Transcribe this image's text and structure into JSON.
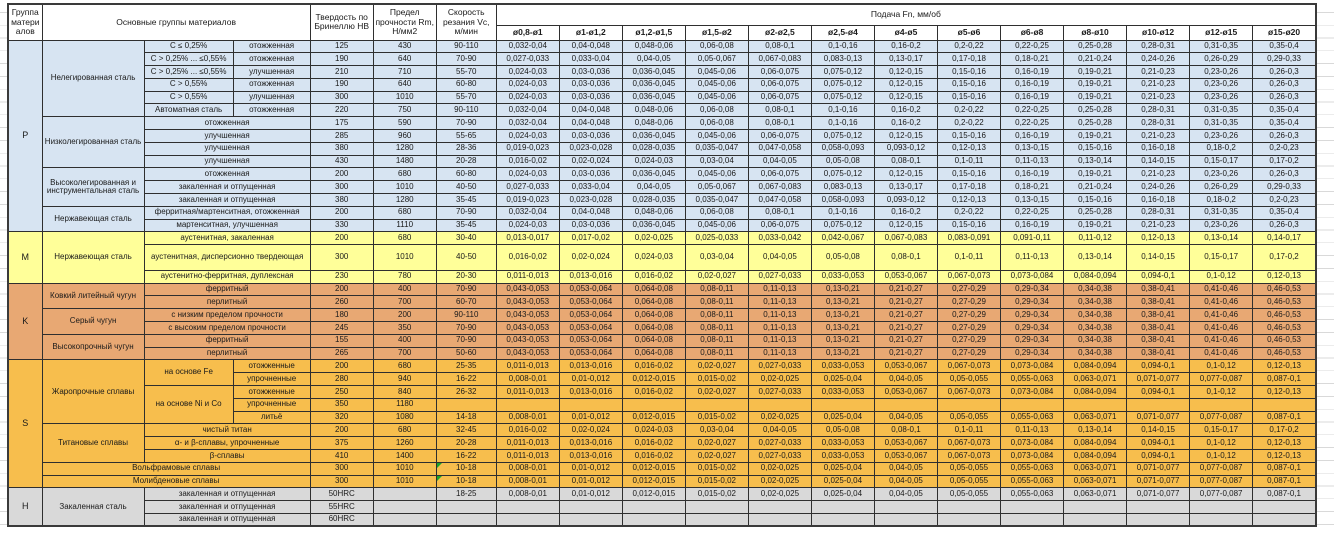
{
  "header": {
    "col_group": "Группа материалов",
    "col_main": "Основные группы материалов",
    "col_hb": "Твердость по Бринеллю НВ",
    "col_rm": "Предел прочности Rm, Н/мм2",
    "col_vc": "Скорость резания Vc, м/мин",
    "col_feed": "Подача Fn, мм/об",
    "diameters": [
      "ø0,8-ø1",
      "ø1-ø1,2",
      "ø1,2-ø1,5",
      "ø1,5-ø2",
      "ø2-ø2,5",
      "ø2,5-ø4",
      "ø4-ø5",
      "ø5-ø6",
      "ø6-ø8",
      "ø8-ø10",
      "ø10-ø12",
      "ø12-ø15",
      "ø15-ø20"
    ]
  },
  "colors": {
    "P": "#D7E4F2",
    "M": "#FFFF99",
    "K": "#E8A873",
    "S": "#F7BE4D",
    "H": "#D9D9D9",
    "grid": "#2f2f2f",
    "comment_marker": "#1fa32a"
  },
  "feed_patterns": {
    "A": [
      "0,032-0,04",
      "0,04-0,048",
      "0,048-0,06",
      "0,06-0,08",
      "0,08-0,1",
      "0,1-0,16",
      "0,16-0,2",
      "0,2-0,22",
      "0,22-0,25",
      "0,25-0,28",
      "0,28-0,31",
      "0,31-0,35",
      "0,35-0,4"
    ],
    "B": [
      "0,027-0,033",
      "0,033-0,04",
      "0,04-0,05",
      "0,05-0,067",
      "0,067-0,083",
      "0,083-0,13",
      "0,13-0,17",
      "0,17-0,18",
      "0,18-0,21",
      "0,21-0,24",
      "0,24-0,26",
      "0,26-0,29",
      "0,29-0,33"
    ],
    "C": [
      "0,024-0,03",
      "0,03-0,036",
      "0,036-0,045",
      "0,045-0,06",
      "0,06-0,075",
      "0,075-0,12",
      "0,12-0,15",
      "0,15-0,16",
      "0,16-0,19",
      "0,19-0,21",
      "0,21-0,23",
      "0,23-0,26",
      "0,26-0,3"
    ],
    "D": [
      "0,019-0,023",
      "0,023-0,028",
      "0,028-0,035",
      "0,035-0,047",
      "0,047-0,058",
      "0,058-0,093",
      "0,093-0,12",
      "0,12-0,13",
      "0,13-0,15",
      "0,15-0,16",
      "0,16-0,18",
      "0,18-0,2",
      "0,2-0,23"
    ],
    "E": [
      "0,016-0,02",
      "0,02-0,024",
      "0,024-0,03",
      "0,03-0,04",
      "0,04-0,05",
      "0,05-0,08",
      "0,08-0,1",
      "0,1-0,11",
      "0,11-0,13",
      "0,13-0,14",
      "0,14-0,15",
      "0,15-0,17",
      "0,17-0,2"
    ],
    "F": [
      "0,013-0,017",
      "0,017-0,02",
      "0,02-0,025",
      "0,025-0,033",
      "0,033-0,042",
      "0,042-0,067",
      "0,067-0,083",
      "0,083-0,091",
      "0,091-0,11",
      "0,11-0,12",
      "0,12-0,13",
      "0,13-0,14",
      "0,14-0,17"
    ],
    "G": [
      "0,011-0,013",
      "0,013-0,016",
      "0,016-0,02",
      "0,02-0,027",
      "0,027-0,033",
      "0,033-0,053",
      "0,053-0,067",
      "0,067-0,073",
      "0,073-0,084",
      "0,084-0,094",
      "0,094-0,1",
      "0,1-0,12",
      "0,12-0,13"
    ],
    "H": [
      "0,043-0,053",
      "0,053-0,064",
      "0,064-0,08",
      "0,08-0,11",
      "0,11-0,13",
      "0,13-0,21",
      "0,21-0,27",
      "0,27-0,29",
      "0,29-0,34",
      "0,34-0,38",
      "0,38-0,41",
      "0,41-0,46",
      "0,46-0,53"
    ],
    "I": [
      "0,008-0,01",
      "0,01-0,012",
      "0,012-0,015",
      "0,015-0,02",
      "0,02-0,025",
      "0,025-0,04",
      "0,04-0,05",
      "0,05-0,055",
      "0,055-0,063",
      "0,063-0,071",
      "0,071-0,077",
      "0,077-0,087",
      "0,087-0,1"
    ]
  },
  "groups": [
    {
      "letter": "P",
      "rows": [
        {
          "labels": [
            {
              "t": "Нелегированная сталь",
              "rs": 6
            },
            {
              "t": "С ≤ 0,25%"
            },
            {
              "t": "отожженная"
            }
          ],
          "hb": "125",
          "rm": "430",
          "vc": "90-110",
          "fp": "A"
        },
        {
          "labels": [
            {
              "t": "С > 0,25% ... ≤0,55%"
            },
            {
              "t": "отожженная"
            }
          ],
          "hb": "190",
          "rm": "640",
          "vc": "70-90",
          "fp": "B"
        },
        {
          "labels": [
            {
              "t": "С > 0,25% ... ≤0,55%"
            },
            {
              "t": "улучшенная"
            }
          ],
          "hb": "210",
          "rm": "710",
          "vc": "55-70",
          "fp": "C"
        },
        {
          "labels": [
            {
              "t": "С > 0,55%"
            },
            {
              "t": "отожженная"
            }
          ],
          "hb": "190",
          "rm": "640",
          "vc": "60-80",
          "fp": "C"
        },
        {
          "labels": [
            {
              "t": "С > 0,55%"
            },
            {
              "t": "улучшенная"
            }
          ],
          "hb": "300",
          "rm": "1010",
          "vc": "55-70",
          "fp": "C"
        },
        {
          "labels": [
            {
              "t": "Автоматная сталь"
            },
            {
              "t": "отожженная"
            }
          ],
          "hb": "220",
          "rm": "750",
          "vc": "90-110",
          "fp": "A"
        },
        {
          "labels": [
            {
              "t": "Низколегированная сталь",
              "rs": 4
            },
            {
              "t": "отожженная",
              "cs": 2
            }
          ],
          "hb": "175",
          "rm": "590",
          "vc": "70-90",
          "fp": "A"
        },
        {
          "labels": [
            {
              "t": "улучшенная",
              "cs": 2
            }
          ],
          "hb": "285",
          "rm": "960",
          "vc": "55-65",
          "fp": "C"
        },
        {
          "labels": [
            {
              "t": "улучшенная",
              "cs": 2
            }
          ],
          "hb": "380",
          "rm": "1280",
          "vc": "28-36",
          "fp": "D"
        },
        {
          "labels": [
            {
              "t": "улучшенная",
              "cs": 2
            }
          ],
          "hb": "430",
          "rm": "1480",
          "vc": "20-28",
          "fp": "E"
        },
        {
          "labels": [
            {
              "t": "Высоколегированная и инструментальная сталь",
              "rs": 3
            },
            {
              "t": "отожженная",
              "cs": 2
            }
          ],
          "hb": "200",
          "rm": "680",
          "vc": "60-80",
          "fp": "C"
        },
        {
          "labels": [
            {
              "t": "закаленная и отпущенная",
              "cs": 2
            }
          ],
          "hb": "300",
          "rm": "1010",
          "vc": "40-50",
          "fp": "B"
        },
        {
          "labels": [
            {
              "t": "закаленная и отпущенная",
              "cs": 2
            }
          ],
          "hb": "380",
          "rm": "1280",
          "vc": "35-45",
          "fp": "D"
        },
        {
          "labels": [
            {
              "t": "Нержавеющая сталь",
              "rs": 2
            },
            {
              "t": "ферритная/мартенситная, отожженная",
              "cs": 2
            }
          ],
          "hb": "200",
          "rm": "680",
          "vc": "70-90",
          "fp": "A"
        },
        {
          "labels": [
            {
              "t": "мартенситная, улучшенная",
              "cs": 2
            }
          ],
          "hb": "330",
          "rm": "1110",
          "vc": "35-45",
          "fp": "C"
        }
      ]
    },
    {
      "letter": "M",
      "rows": [
        {
          "labels": [
            {
              "t": "Нержавеющая сталь",
              "rs": 3
            },
            {
              "t": "аустенитная, закаленная",
              "cs": 2
            }
          ],
          "hb": "200",
          "rm": "680",
          "vc": "30-40",
          "fp": "F"
        },
        {
          "labels": [
            {
              "t": "аустенитная, дисперсионно твердеющая",
              "cs": 2
            }
          ],
          "hb": "300",
          "rm": "1010",
          "vc": "40-50",
          "fp": "E",
          "h": 2
        },
        {
          "labels": [
            {
              "t": "аустенитно-ферритная, дуплексная",
              "cs": 2
            }
          ],
          "hb": "230",
          "rm": "780",
          "vc": "20-30",
          "fp": "G"
        }
      ]
    },
    {
      "letter": "K",
      "rows": [
        {
          "labels": [
            {
              "t": "Ковкий литейный чугун",
              "rs": 2
            },
            {
              "t": "ферритный",
              "cs": 2
            }
          ],
          "hb": "200",
          "rm": "400",
          "vc": "70-90",
          "fp": "H"
        },
        {
          "labels": [
            {
              "t": "перлитный",
              "cs": 2
            }
          ],
          "hb": "260",
          "rm": "700",
          "vc": "60-70",
          "fp": "H"
        },
        {
          "labels": [
            {
              "t": "Серый чугун",
              "rs": 2
            },
            {
              "t": "с низким пределом прочности",
              "cs": 2
            }
          ],
          "hb": "180",
          "rm": "200",
          "vc": "90-110",
          "fp": "H"
        },
        {
          "labels": [
            {
              "t": "с высоким пределом прочности",
              "cs": 2
            }
          ],
          "hb": "245",
          "rm": "350",
          "vc": "70-90",
          "fp": "H"
        },
        {
          "labels": [
            {
              "t": "Высокопрочный чугун",
              "rs": 2
            },
            {
              "t": "ферритный",
              "cs": 2
            }
          ],
          "hb": "155",
          "rm": "400",
          "vc": "70-90",
          "fp": "H"
        },
        {
          "labels": [
            {
              "t": "перлитный",
              "cs": 2
            }
          ],
          "hb": "265",
          "rm": "700",
          "vc": "50-60",
          "fp": "H"
        }
      ]
    },
    {
      "letter": "S",
      "rows": [
        {
          "labels": [
            {
              "t": "Жаропрочные сплавы",
              "rs": 5
            },
            {
              "t": "на основе Fe",
              "rs": 2
            },
            {
              "t": "отожженные"
            }
          ],
          "hb": "200",
          "rm": "680",
          "vc": "25-35",
          "fp": "G"
        },
        {
          "labels": [
            {
              "t": "упрочненные"
            }
          ],
          "hb": "280",
          "rm": "940",
          "vc": "16-22",
          "fp": "I"
        },
        {
          "labels": [
            {
              "t": "на основе Ni и Co",
              "rs": 3
            },
            {
              "t": "отожженные"
            }
          ],
          "hb": "250",
          "rm": "840",
          "vc": "26-32",
          "fp": "G"
        },
        {
          "labels": [
            {
              "t": "упрочненные"
            }
          ],
          "hb": "350",
          "rm": "1180",
          "vc": "",
          "fp": null
        },
        {
          "labels": [
            {
              "t": "литьё"
            }
          ],
          "hb": "320",
          "rm": "1080",
          "vc": "14-18",
          "fp": "I"
        },
        {
          "labels": [
            {
              "t": "Титановые сплавы",
              "rs": 3
            },
            {
              "t": "чистый титан",
              "cs": 2
            }
          ],
          "hb": "200",
          "rm": "680",
          "vc": "32-45",
          "fp": "E"
        },
        {
          "labels": [
            {
              "t": "α- и β-сплавы, упрочненные",
              "cs": 2
            }
          ],
          "hb": "375",
          "rm": "1260",
          "vc": "20-28",
          "fp": "G"
        },
        {
          "labels": [
            {
              "t": "β-сплавы",
              "cs": 2
            }
          ],
          "hb": "410",
          "rm": "1400",
          "vc": "16-22",
          "fp": "G"
        },
        {
          "labels": [
            {
              "t": "Вольфрамовые сплавы",
              "cs": 3
            }
          ],
          "hb": "300",
          "rm": "1010",
          "vc": "10-18",
          "fp": "I",
          "marker": true
        },
        {
          "labels": [
            {
              "t": "Молибденовые сплавы",
              "cs": 3
            }
          ],
          "hb": "300",
          "rm": "1010",
          "vc": "10-18",
          "fp": "I",
          "marker": true
        }
      ]
    },
    {
      "letter": "H",
      "rows": [
        {
          "labels": [
            {
              "t": "Закаленная сталь",
              "rs": 3
            },
            {
              "t": "закаленная и отпущенная",
              "cs": 2
            }
          ],
          "hb": "50HRC",
          "rm": "",
          "vc": "18-25",
          "fp": "I"
        },
        {
          "labels": [
            {
              "t": "закаленная и отпущенная",
              "cs": 2
            }
          ],
          "hb": "55HRC",
          "rm": "",
          "vc": "",
          "fp": null
        },
        {
          "labels": [
            {
              "t": "закаленная и отпущенная",
              "cs": 2
            }
          ],
          "hb": "60HRC",
          "rm": "",
          "vc": "",
          "fp": null
        }
      ]
    }
  ]
}
